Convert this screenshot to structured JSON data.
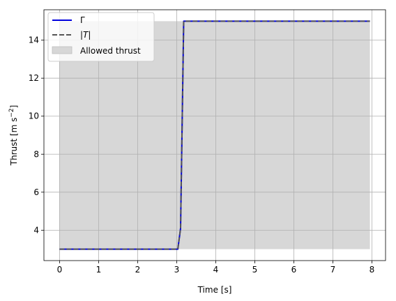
{
  "chart_data": {
    "type": "line",
    "xlabel": "Time [s]",
    "ylabel_prefix": "Thrust [m s",
    "ylabel_exp": "−2",
    "ylabel_suffix": "]",
    "xlim": [
      -0.4,
      8.35
    ],
    "ylim": [
      2.4,
      15.6
    ],
    "xticks": [
      0,
      1,
      2,
      3,
      4,
      5,
      6,
      7,
      8
    ],
    "yticks": [
      4,
      6,
      8,
      10,
      12,
      14
    ],
    "grid": true,
    "legend_position": "top-left",
    "band": {
      "name": "Allowed thrust",
      "x": [
        0,
        7.95
      ],
      "lower": 3,
      "upper": 15,
      "color": "#d7d7d7"
    },
    "series": [
      {
        "name": "Γ",
        "style": "solid",
        "color": "#0000dd",
        "x": [
          0,
          3.03,
          3.1,
          3.18,
          7.95
        ],
        "y": [
          3,
          3,
          4.1,
          15,
          15
        ]
      },
      {
        "name": "|T|",
        "style": "dashed",
        "color": "#555555",
        "x": [
          0,
          3.03,
          3.1,
          3.18,
          7.95
        ],
        "y": [
          3,
          3,
          4.1,
          15,
          15
        ]
      }
    ]
  }
}
